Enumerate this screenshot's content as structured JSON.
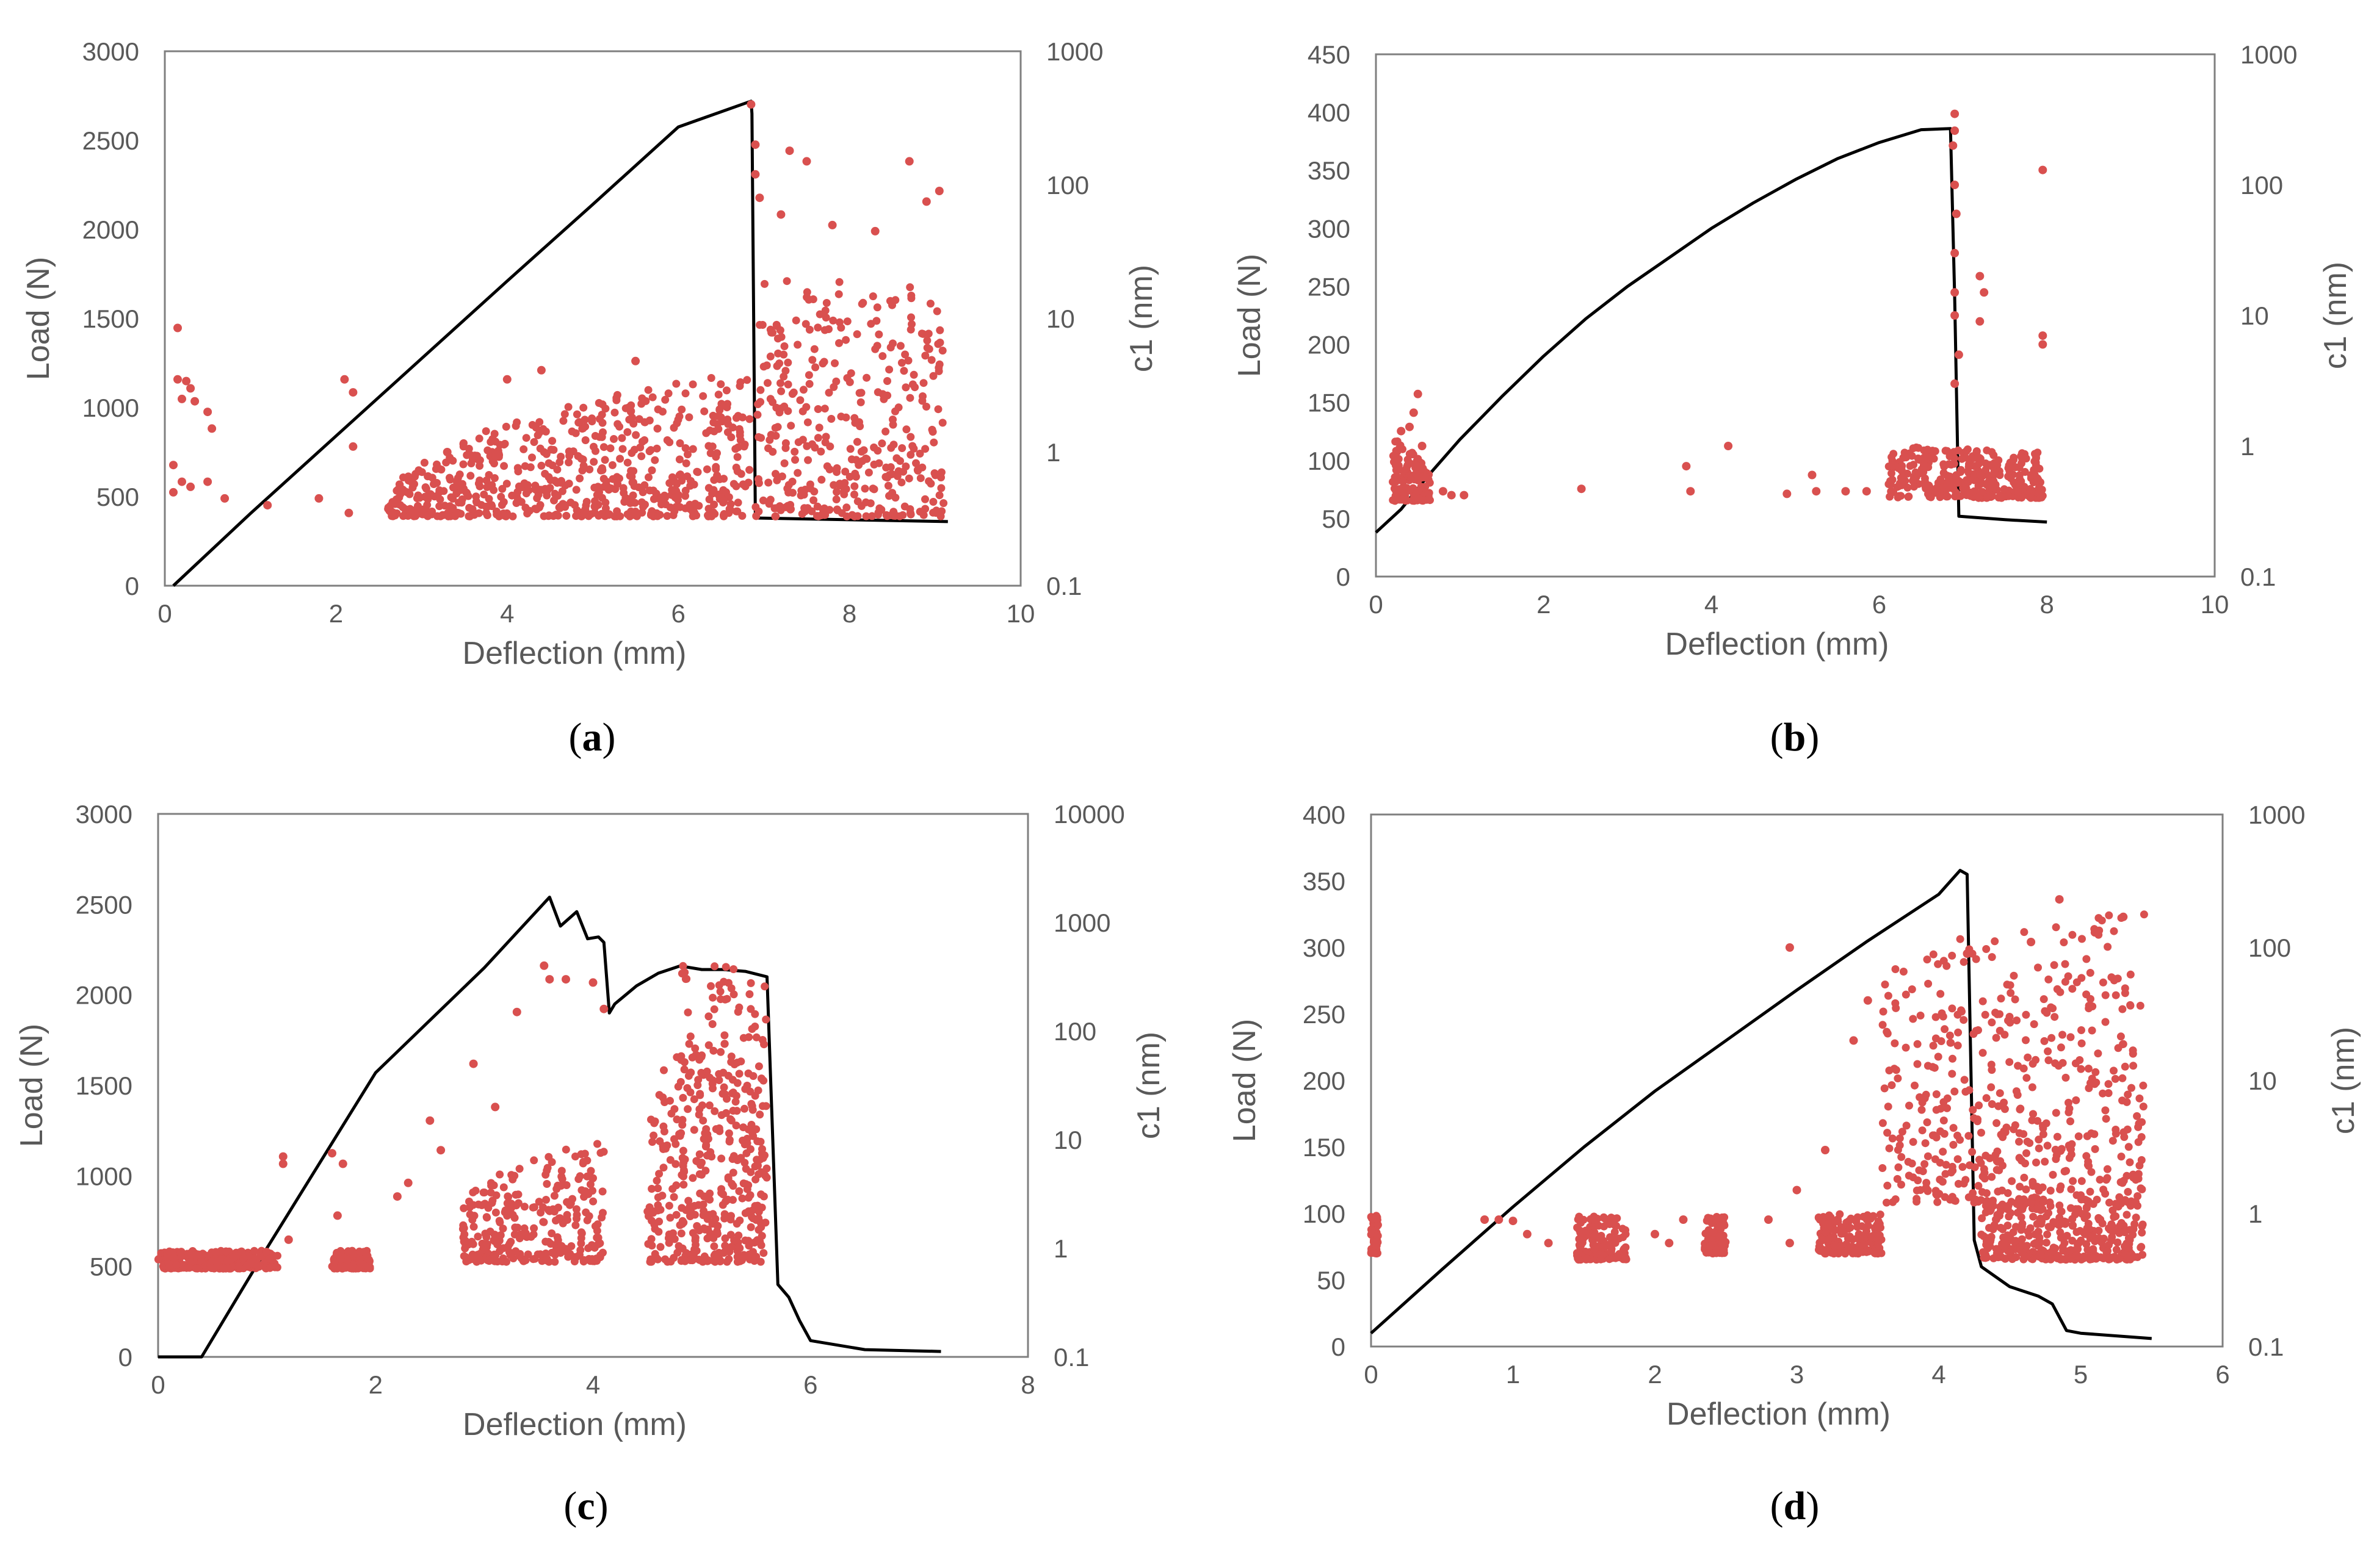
{
  "colors": {
    "load_line": "#000000",
    "c1_points": "#d9504f",
    "axis": "#7f7f7f",
    "text": "#595959"
  },
  "chart_data": [
    {
      "id": "a",
      "type": "scatter",
      "caption": "a",
      "xlabel": "Deflection (mm)",
      "ylabel": "Load (N)",
      "y2label": "c1 (nm)",
      "xlim": [
        0,
        10
      ],
      "ylim": [
        0,
        3000
      ],
      "y2lim": [
        0.1,
        1000
      ],
      "y2scale": "log",
      "xticks": [
        "0",
        "2",
        "4",
        "6",
        "8",
        "10"
      ],
      "yticks": [
        "0",
        "500",
        "1000",
        "1500",
        "2000",
        "2500",
        "3000"
      ],
      "y2ticks": [
        "0.1",
        "1",
        "10",
        "100",
        "1000"
      ],
      "load_series": {
        "name": "Load (N)",
        "x": [
          0.1,
          1,
          2,
          3,
          4,
          5,
          6,
          6.85,
          6.86,
          6.9,
          9.15
        ],
        "y": [
          0,
          405,
          840,
          1275,
          1710,
          2140,
          2575,
          2720,
          2650,
          380,
          360
        ]
      },
      "c1_series": {
        "name": "c1 (nm)",
        "dense_regions": [
          {
            "x": [
              2.6,
              6.85
            ],
            "y_min": 0.33,
            "y_max_start": 0.5,
            "y_max_end": 4
          },
          {
            "x": [
              6.9,
              9.1
            ],
            "y_min": 0.33,
            "y_max_start": 20,
            "y_max_end": 18
          }
        ],
        "outliers": [
          {
            "x": 0.15,
            "y": 8.5
          },
          {
            "x": 0.15,
            "y": 3.5
          },
          {
            "x": 0.25,
            "y": 3.4
          },
          {
            "x": 0.3,
            "y": 3.0
          },
          {
            "x": 0.2,
            "y": 2.5
          },
          {
            "x": 0.35,
            "y": 2.4
          },
          {
            "x": 0.5,
            "y": 2.0
          },
          {
            "x": 0.55,
            "y": 1.5
          },
          {
            "x": 0.1,
            "y": 0.8
          },
          {
            "x": 0.2,
            "y": 0.6
          },
          {
            "x": 0.1,
            "y": 0.5
          },
          {
            "x": 0.3,
            "y": 0.55
          },
          {
            "x": 0.5,
            "y": 0.6
          },
          {
            "x": 0.7,
            "y": 0.45
          },
          {
            "x": 1.2,
            "y": 0.4
          },
          {
            "x": 1.8,
            "y": 0.45
          },
          {
            "x": 2.1,
            "y": 3.5
          },
          {
            "x": 2.2,
            "y": 2.8
          },
          {
            "x": 2.2,
            "y": 1.1
          },
          {
            "x": 2.15,
            "y": 0.35
          },
          {
            "x": 3.3,
            "y": 1.0
          },
          {
            "x": 4.4,
            "y": 4.1
          },
          {
            "x": 4.0,
            "y": 3.5
          },
          {
            "x": 5.5,
            "y": 4.8
          },
          {
            "x": 6.85,
            "y": 400
          },
          {
            "x": 6.9,
            "y": 200
          },
          {
            "x": 6.9,
            "y": 120
          },
          {
            "x": 6.95,
            "y": 80
          },
          {
            "x": 7.3,
            "y": 180
          },
          {
            "x": 7.5,
            "y": 150
          },
          {
            "x": 7.8,
            "y": 50
          },
          {
            "x": 8.7,
            "y": 150
          },
          {
            "x": 8.9,
            "y": 75
          },
          {
            "x": 9.05,
            "y": 90
          },
          {
            "x": 7.2,
            "y": 60
          },
          {
            "x": 8.3,
            "y": 45
          }
        ]
      }
    },
    {
      "id": "b",
      "type": "scatter",
      "caption": "b",
      "xlabel": "Deflection (mm)",
      "ylabel": "Load (N)",
      "y2label": "c1 (nm)",
      "xlim": [
        0,
        10
      ],
      "ylim": [
        0,
        450
      ],
      "y2lim": [
        0.1,
        1000
      ],
      "y2scale": "log",
      "xticks": [
        "0",
        "2",
        "4",
        "6",
        "8",
        "10"
      ],
      "yticks": [
        "0",
        "50",
        "100",
        "150",
        "200",
        "250",
        "300",
        "350",
        "400",
        "450"
      ],
      "y2ticks": [
        "0.1",
        "1",
        "10",
        "100",
        "1000"
      ],
      "load_series": {
        "name": "Load (N)",
        "x": [
          0,
          0.3,
          0.6,
          1,
          1.5,
          2,
          2.5,
          3,
          3.5,
          4,
          4.5,
          5,
          5.5,
          6,
          6.5,
          6.85,
          6.9,
          6.95,
          7.5,
          8.0
        ],
        "y": [
          38,
          58,
          85,
          118,
          155,
          190,
          222,
          250,
          275,
          300,
          322,
          342,
          360,
          374,
          385,
          386,
          240,
          52,
          49,
          47
        ]
      },
      "c1_series": {
        "name": "c1 (nm)",
        "dense_regions": [
          {
            "x": [
              0.2,
              0.65
            ],
            "y_min": 0.38,
            "y_max_start": 1.2,
            "y_max_end": 0.6
          },
          {
            "x": [
              6.1,
              7.95
            ],
            "y_min": 0.4,
            "y_max_start": 1.0,
            "y_max_end": 0.9
          }
        ],
        "outliers": [
          {
            "x": 0.5,
            "y": 2.5
          },
          {
            "x": 0.45,
            "y": 1.8
          },
          {
            "x": 0.4,
            "y": 1.4
          },
          {
            "x": 0.3,
            "y": 1.3
          },
          {
            "x": 0.55,
            "y": 1.0
          },
          {
            "x": 0.8,
            "y": 0.45
          },
          {
            "x": 0.9,
            "y": 0.42
          },
          {
            "x": 1.05,
            "y": 0.42
          },
          {
            "x": 2.45,
            "y": 0.47
          },
          {
            "x": 3.7,
            "y": 0.7
          },
          {
            "x": 3.75,
            "y": 0.45
          },
          {
            "x": 4.2,
            "y": 1.0
          },
          {
            "x": 4.9,
            "y": 0.43
          },
          {
            "x": 5.2,
            "y": 0.6
          },
          {
            "x": 5.25,
            "y": 0.45
          },
          {
            "x": 5.6,
            "y": 0.45
          },
          {
            "x": 5.85,
            "y": 0.45
          },
          {
            "x": 6.9,
            "y": 350
          },
          {
            "x": 6.9,
            "y": 260
          },
          {
            "x": 6.88,
            "y": 200
          },
          {
            "x": 6.9,
            "y": 100
          },
          {
            "x": 6.92,
            "y": 60
          },
          {
            "x": 6.9,
            "y": 30
          },
          {
            "x": 6.9,
            "y": 15
          },
          {
            "x": 6.9,
            "y": 10
          },
          {
            "x": 6.95,
            "y": 5
          },
          {
            "x": 6.9,
            "y": 3
          },
          {
            "x": 7.2,
            "y": 20
          },
          {
            "x": 7.25,
            "y": 15
          },
          {
            "x": 7.2,
            "y": 9
          },
          {
            "x": 7.95,
            "y": 130
          },
          {
            "x": 7.95,
            "y": 7
          },
          {
            "x": 7.95,
            "y": 6
          }
        ]
      }
    },
    {
      "id": "c",
      "type": "scatter",
      "caption": "c",
      "xlabel": "Deflection (mm)",
      "ylabel": "Load (N)",
      "y2label": "c1 (nm)",
      "xlim": [
        0,
        8
      ],
      "ylim": [
        0,
        3000
      ],
      "y2lim": [
        0.1,
        10000
      ],
      "y2scale": "log",
      "xticks": [
        "0",
        "2",
        "4",
        "6",
        "8"
      ],
      "yticks": [
        "0",
        "500",
        "1000",
        "1500",
        "2000",
        "2500",
        "3000"
      ],
      "y2ticks": [
        "0.1",
        "1",
        "10",
        "100",
        "1000",
        "10000"
      ],
      "load_series": {
        "name": "Load (N)",
        "x": [
          0,
          0.4,
          1,
          2,
          3,
          3.6,
          3.7,
          3.85,
          3.95,
          4.05,
          4.1,
          4.15,
          4.2,
          4.4,
          4.6,
          4.8,
          5.0,
          5.2,
          5.4,
          5.6,
          5.7,
          5.8,
          5.9,
          6.0,
          6.5,
          7.2
        ],
        "y": [
          0,
          0,
          600,
          1570,
          2150,
          2540,
          2380,
          2460,
          2310,
          2320,
          2290,
          1900,
          1950,
          2050,
          2120,
          2160,
          2140,
          2140,
          2130,
          2100,
          400,
          330,
          200,
          90,
          40,
          30
        ]
      },
      "c1_series": {
        "name": "c1 (nm)",
        "dense_regions": [
          {
            "x": [
              0,
              1.1
            ],
            "y_min": 0.65,
            "y_max_start": 0.95,
            "y_max_end": 0.95
          },
          {
            "x": [
              1.6,
              1.95
            ],
            "y_min": 0.65,
            "y_max_start": 0.95,
            "y_max_end": 0.95
          },
          {
            "x": [
              2.8,
              4.1
            ],
            "y_min": 0.75,
            "y_max_start": 3,
            "y_max_end": 10
          },
          {
            "x": [
              4.5,
              5.6
            ],
            "y_min": 0.75,
            "y_max_start": 20,
            "y_max_end": 200
          },
          {
            "x": [
              4.8,
              5.6
            ],
            "y_min": 0.75,
            "y_max_start": 400,
            "y_max_end": 400
          }
        ],
        "outliers": [
          {
            "x": 1.15,
            "y": 7
          },
          {
            "x": 1.15,
            "y": 6
          },
          {
            "x": 1.6,
            "y": 7.5
          },
          {
            "x": 1.7,
            "y": 6
          },
          {
            "x": 1.65,
            "y": 2
          },
          {
            "x": 1.2,
            "y": 1.2
          },
          {
            "x": 2.2,
            "y": 3
          },
          {
            "x": 2.5,
            "y": 15
          },
          {
            "x": 2.9,
            "y": 50
          },
          {
            "x": 3.3,
            "y": 150
          },
          {
            "x": 3.55,
            "y": 400
          },
          {
            "x": 3.6,
            "y": 300
          },
          {
            "x": 3.75,
            "y": 300
          },
          {
            "x": 4.0,
            "y": 280
          },
          {
            "x": 4.1,
            "y": 160
          },
          {
            "x": 2.3,
            "y": 4
          },
          {
            "x": 2.6,
            "y": 8
          },
          {
            "x": 3.1,
            "y": 20
          }
        ]
      }
    },
    {
      "id": "d",
      "type": "scatter",
      "caption": "d",
      "xlabel": "Deflection (mm)",
      "ylabel": "Load (N)",
      "y2label": "c1 (nm)",
      "xlim": [
        0,
        6
      ],
      "ylim": [
        0,
        400
      ],
      "y2lim": [
        0.1,
        1000
      ],
      "y2scale": "log",
      "xticks": [
        "0",
        "1",
        "2",
        "3",
        "4",
        "5",
        "6"
      ],
      "yticks": [
        "0",
        "50",
        "100",
        "150",
        "200",
        "250",
        "300",
        "350",
        "400"
      ],
      "y2ticks": [
        "0.1",
        "1",
        "10",
        "100",
        "1000"
      ],
      "load_series": {
        "name": "Load (N)",
        "x": [
          0,
          0.5,
          1,
          1.5,
          2,
          2.5,
          3,
          3.5,
          4,
          4.15,
          4.2,
          4.25,
          4.3,
          4.5,
          4.7,
          4.8,
          4.9,
          5.0,
          5.5
        ],
        "y": [
          10,
          58,
          105,
          150,
          192,
          230,
          268,
          305,
          340,
          358,
          355,
          80,
          60,
          45,
          38,
          32,
          12,
          10,
          6
        ]
      },
      "c1_series": {
        "name": "c1 (nm)",
        "dense_regions": [
          {
            "x": [
              0,
              0.05
            ],
            "y_min": 0.5,
            "y_max_start": 1.0,
            "y_max_end": 1.0
          },
          {
            "x": [
              1.45,
              1.8
            ],
            "y_min": 0.45,
            "y_max_start": 0.95,
            "y_max_end": 0.95
          },
          {
            "x": [
              2.35,
              2.5
            ],
            "y_min": 0.5,
            "y_max_start": 0.95,
            "y_max_end": 0.95
          },
          {
            "x": [
              3.15,
              3.6
            ],
            "y_min": 0.5,
            "y_max_start": 1.0,
            "y_max_end": 1.0
          },
          {
            "x": [
              4.3,
              5.45
            ],
            "y_min": 0.45,
            "y_max_start": 1.2,
            "y_max_end": 1.2
          },
          {
            "x": [
              3.6,
              5.45
            ],
            "y_min": 1.2,
            "y_max_start": 80,
            "y_max_end": 200
          }
        ],
        "outliers": [
          {
            "x": 0.8,
            "y": 0.9
          },
          {
            "x": 0.9,
            "y": 0.9
          },
          {
            "x": 1.0,
            "y": 0.88
          },
          {
            "x": 1.1,
            "y": 0.7
          },
          {
            "x": 1.25,
            "y": 0.6
          },
          {
            "x": 2.0,
            "y": 0.7
          },
          {
            "x": 2.1,
            "y": 0.6
          },
          {
            "x": 2.2,
            "y": 0.9
          },
          {
            "x": 2.8,
            "y": 0.9
          },
          {
            "x": 2.95,
            "y": 100
          },
          {
            "x": 2.95,
            "y": 0.6
          },
          {
            "x": 3.0,
            "y": 1.5
          },
          {
            "x": 3.2,
            "y": 3
          },
          {
            "x": 3.4,
            "y": 20
          },
          {
            "x": 3.5,
            "y": 40
          },
          {
            "x": 4.2,
            "y": 90
          },
          {
            "x": 4.85,
            "y": 230
          },
          {
            "x": 4.65,
            "y": 110
          },
          {
            "x": 5.1,
            "y": 130
          },
          {
            "x": 5.3,
            "y": 170
          }
        ]
      }
    }
  ]
}
